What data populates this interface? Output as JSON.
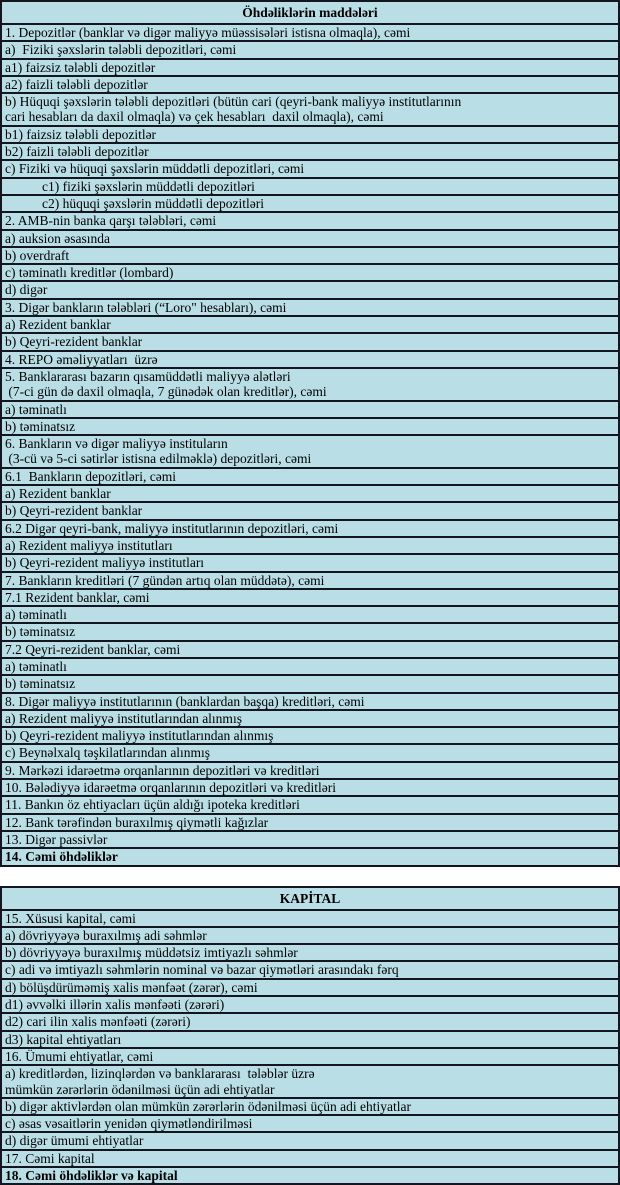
{
  "colors": {
    "page_bg": "#ffffff",
    "table_bg": "#b9dee6",
    "border": "#15151f",
    "text": "#000000"
  },
  "tables": [
    {
      "id": "liabilities",
      "header": "Öhdəliklərin maddələri",
      "rows": [
        {
          "text": "1. Depozitlər (banklar və digər maliyyə müəssisələri istisna olmaqla), cəmi",
          "bold": false,
          "indent": false
        },
        {
          "text": "a)  Fiziki şəxslərin tələbli depozitləri, cəmi",
          "bold": false,
          "indent": false
        },
        {
          "text": "a1) faizsiz tələbli depozitlər",
          "bold": false,
          "indent": false
        },
        {
          "text": "a2) faizli tələbli depozitlər",
          "bold": false,
          "indent": false
        },
        {
          "text": "b) Hüquqi şəxslərin tələbli depozitləri (bütün cari (qeyri-bank maliyyə institutlarının\ncari hesabları da daxil olmaqla) və çek hesabları  daxil olmaqla), cəmi",
          "bold": false,
          "indent": false
        },
        {
          "text": "b1) faizsiz tələbli depozitlər",
          "bold": false,
          "indent": false
        },
        {
          "text": "b2) faizli tələbli depozitlər",
          "bold": false,
          "indent": false
        },
        {
          "text": "c) Fiziki və hüquqi şəxslərin müddətli depozitləri, cəmi",
          "bold": false,
          "indent": false
        },
        {
          "text": "c1) fiziki şəxslərin müddətli depozitləri",
          "bold": false,
          "indent": true
        },
        {
          "text": "c2) hüquqi şəxslərin müddətli depozitləri",
          "bold": false,
          "indent": true
        },
        {
          "text": "2. AMB-nin banka qarşı tələbləri, cəmi",
          "bold": false,
          "indent": false
        },
        {
          "text": "a) auksion əsasında",
          "bold": false,
          "indent": false
        },
        {
          "text": "b) overdraft",
          "bold": false,
          "indent": false
        },
        {
          "text": "c) təminatlı kreditlər (lombard)",
          "bold": false,
          "indent": false
        },
        {
          "text": "d) digər",
          "bold": false,
          "indent": false
        },
        {
          "text": "3. Digər bankların tələbləri (“Loro\" hesabları), cəmi",
          "bold": false,
          "indent": false
        },
        {
          "text": "a) Rezident banklar",
          "bold": false,
          "indent": false
        },
        {
          "text": "b) Qeyri-rezident banklar",
          "bold": false,
          "indent": false
        },
        {
          "text": "4. REPO əməliyyatları  üzrə",
          "bold": false,
          "indent": false
        },
        {
          "text": "5. Banklararası bazarın qısamüddətli maliyyə alətləri\n (7-ci gün də daxil olmaqla, 7 günədək olan kreditlər), cəmi",
          "bold": false,
          "indent": false
        },
        {
          "text": "a) təminatlı",
          "bold": false,
          "indent": false
        },
        {
          "text": "b) təminatsız",
          "bold": false,
          "indent": false
        },
        {
          "text": "6. Bankların və digər maliyyə instituların\n (3-cü və 5-ci sətirlər istisna edilməklə) depozitləri, cəmi",
          "bold": false,
          "indent": false
        },
        {
          "text": "6.1  Bankların depozitləri, cəmi",
          "bold": false,
          "indent": false
        },
        {
          "text": "a) Rezident banklar",
          "bold": false,
          "indent": false
        },
        {
          "text": "b) Qeyri-rezident banklar",
          "bold": false,
          "indent": false
        },
        {
          "text": "6.2 Digər qeyri-bank, maliyyə institutlarının depozitləri, cəmi",
          "bold": false,
          "indent": false
        },
        {
          "text": "a) Rezident maliyyə institutları",
          "bold": false,
          "indent": false
        },
        {
          "text": "b) Qeyri-rezident maliyyə institutları",
          "bold": false,
          "indent": false
        },
        {
          "text": "7. Bankların kreditləri (7 gündən artıq olan müddətə), cəmi",
          "bold": false,
          "indent": false
        },
        {
          "text": "7.1 Rezident banklar, cəmi",
          "bold": false,
          "indent": false
        },
        {
          "text": "a) təminatlı",
          "bold": false,
          "indent": false
        },
        {
          "text": "b) təminatsız",
          "bold": false,
          "indent": false
        },
        {
          "text": "7.2 Qeyri-rezident banklar, cəmi",
          "bold": false,
          "indent": false
        },
        {
          "text": "a) təminatlı",
          "bold": false,
          "indent": false
        },
        {
          "text": "b) təminatsız",
          "bold": false,
          "indent": false
        },
        {
          "text": "8. Digər maliyyə institutlarının (banklardan başqa) kreditləri, cəmi",
          "bold": false,
          "indent": false
        },
        {
          "text": "a) Rezident maliyyə institutlarından alınmış",
          "bold": false,
          "indent": false
        },
        {
          "text": "b) Qeyri-rezident maliyyə institutlarından alınmış",
          "bold": false,
          "indent": false
        },
        {
          "text": "c) Beynəlxalq təşkilatlarından alınmış",
          "bold": false,
          "indent": false
        },
        {
          "text": "9. Mərkəzi idarəetmə orqanlarının depozitləri və kreditləri",
          "bold": false,
          "indent": false
        },
        {
          "text": "10. Bələdiyyə idarəetmə orqanlarının depozitləri və kreditləri",
          "bold": false,
          "indent": false
        },
        {
          "text": "11. Bankın öz ehtiyacları üçün aldığı ipoteka kreditləri",
          "bold": false,
          "indent": false
        },
        {
          "text": "12. Bank tərəfindən buraxılmış qiymətli kağızlar",
          "bold": false,
          "indent": false
        },
        {
          "text": "13. Digər passivlər",
          "bold": false,
          "indent": false
        },
        {
          "text": "14. Cəmi öhdəliklər",
          "bold": true,
          "indent": false
        }
      ]
    },
    {
      "id": "capital",
      "header": "KAPİTAL",
      "rows": [
        {
          "text": "15. Xüsusi kapital, cəmi",
          "bold": false,
          "indent": false
        },
        {
          "text": "a) dövriyyəyə buraxılmış adi səhmlər",
          "bold": false,
          "indent": false
        },
        {
          "text": "b) dövriyyəyə buraxılmış müddətsiz imtiyazlı səhmlər",
          "bold": false,
          "indent": false
        },
        {
          "text": "c) adi və imtiyazlı səhmlərin nominal və bazar qiymətləri arasındakı fərq",
          "bold": false,
          "indent": false
        },
        {
          "text": "d) bölüşdürüməmiş xalis mənfəət (zərər), cəmi",
          "bold": false,
          "indent": false
        },
        {
          "text": "d1) əvvəlki illərin xalis mənfəəti (zərəri)",
          "bold": false,
          "indent": false
        },
        {
          "text": "d2) cari ilin xalis mənfəəti (zərəri)",
          "bold": false,
          "indent": false
        },
        {
          "text": "d3) kapital ehtiyatları",
          "bold": false,
          "indent": false
        },
        {
          "text": "16. Ümumi ehtiyatlar, cəmi",
          "bold": false,
          "indent": false
        },
        {
          "text": "a) kreditlərdən, lizinqlərdən və banklararası  tələblər üzrə\nmümkün zərərlərin ödənilməsi üçün adi ehtiyatlar",
          "bold": false,
          "indent": false
        },
        {
          "text": "b) digər aktivlərdən olan mümkün zərərlərin ödənilməsi üçün adi ehtiyatlar",
          "bold": false,
          "indent": false
        },
        {
          "text": "c) əsas vəsaitlərin yenidən qiymətləndirilməsi",
          "bold": false,
          "indent": false
        },
        {
          "text": "d) digər ümumi ehtiyatlar",
          "bold": false,
          "indent": false
        },
        {
          "text": "17. Cəmi kapital",
          "bold": false,
          "indent": false
        },
        {
          "text": "18. Cəmi öhdəliklər və kapital",
          "bold": true,
          "indent": false
        }
      ]
    }
  ]
}
